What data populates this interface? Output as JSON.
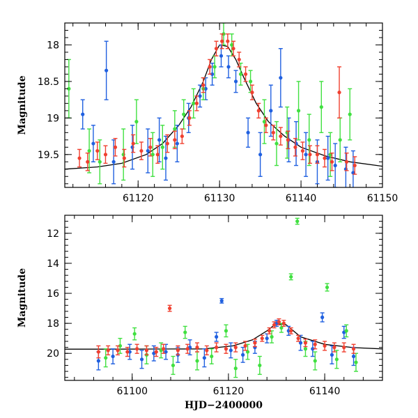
{
  "chart_data": [
    {
      "type": "scatter",
      "xlabel": "",
      "ylabel": "Magnitude",
      "xlim": [
        61111,
        61150
      ],
      "ylim": [
        19.95,
        17.7
      ],
      "y_inverted": true,
      "grid": false,
      "legend": "none",
      "xticks": [
        61120,
        61130,
        61140,
        61150
      ],
      "xtick_labels": [
        "61120",
        "61130",
        "61140",
        "61150"
      ],
      "yticks": [
        18,
        18.5,
        19,
        19.5
      ],
      "ytick_labels": [
        "18",
        "18.5",
        "19",
        "19.5"
      ],
      "colors": {
        "blue": "#2060e0",
        "green": "#40e040",
        "red": "#f04030",
        "model": "#000000"
      },
      "model_curve": {
        "x": [
          61111,
          61115,
          61118,
          61121,
          61123,
          61125,
          61126.5,
          61128,
          61129,
          61130,
          61131,
          61132,
          61133,
          61134.5,
          61136,
          61138,
          61140,
          61143,
          61146,
          61150
        ],
        "y": [
          19.7,
          19.67,
          19.62,
          19.5,
          19.35,
          19.1,
          18.85,
          18.5,
          18.2,
          18.0,
          18.02,
          18.2,
          18.45,
          18.8,
          19.05,
          19.25,
          19.4,
          19.52,
          19.6,
          19.66
        ]
      },
      "series": [
        {
          "color": "blue",
          "x": [
            61113.2,
            61114.5,
            61116.1,
            61117.0,
            61119.3,
            61121.2,
            61122.6,
            61123.4,
            61124.8,
            61126.2,
            61127.6,
            61128.3,
            61129.1,
            61130.2,
            61131.1,
            61132.0,
            61133.5,
            61135.0,
            61136.3,
            61137.5,
            61138.5,
            61139.4,
            61140.6,
            61142.0,
            61143.3,
            61144.2,
            61145.5,
            61146.4
          ],
          "y": [
            18.95,
            19.35,
            18.35,
            19.6,
            19.4,
            19.45,
            19.3,
            19.55,
            19.35,
            19.0,
            18.7,
            18.6,
            18.4,
            18.15,
            18.3,
            18.5,
            19.2,
            19.5,
            18.9,
            18.45,
            19.3,
            19.35,
            19.5,
            19.6,
            19.55,
            19.65,
            19.7,
            19.75
          ],
          "err": [
            0.2,
            0.25,
            0.4,
            0.3,
            0.3,
            0.3,
            0.3,
            0.3,
            0.25,
            0.2,
            0.15,
            0.15,
            0.15,
            0.15,
            0.15,
            0.15,
            0.2,
            0.3,
            0.35,
            0.4,
            0.3,
            0.3,
            0.3,
            0.3,
            0.3,
            0.3,
            0.3,
            0.3
          ]
        },
        {
          "color": "green",
          "x": [
            61111.5,
            61114.0,
            61115.3,
            61118.2,
            61119.8,
            61121.8,
            61123.0,
            61124.5,
            61125.6,
            61126.8,
            61128.0,
            61129.4,
            61130.5,
            61131.5,
            61132.6,
            61133.8,
            61135.5,
            61137.0,
            61138.3,
            61139.7,
            61141.0,
            61142.5,
            61143.6,
            61144.8,
            61146.0
          ],
          "y": [
            18.6,
            19.45,
            19.6,
            19.5,
            19.05,
            19.5,
            19.4,
            19.15,
            18.95,
            18.8,
            18.6,
            18.3,
            17.85,
            18.0,
            18.4,
            18.5,
            19.05,
            19.35,
            19.2,
            18.9,
            19.3,
            18.85,
            19.5,
            19.3,
            18.95
          ],
          "err": [
            0.4,
            0.3,
            0.3,
            0.35,
            0.3,
            0.3,
            0.3,
            0.25,
            0.2,
            0.2,
            0.15,
            0.15,
            0.15,
            0.15,
            0.15,
            0.15,
            0.3,
            0.3,
            0.35,
            0.4,
            0.35,
            0.35,
            0.3,
            0.3,
            0.35
          ]
        },
        {
          "color": "red",
          "x": [
            61112.8,
            61113.8,
            61115.0,
            61116.0,
            61117.2,
            61118.3,
            61119.4,
            61120.4,
            61121.5,
            61122.4,
            61123.6,
            61124.5,
            61125.4,
            61126.3,
            61127.2,
            61128.0,
            61128.8,
            61129.6,
            61130.3,
            61131.0,
            61131.7,
            61132.4,
            61133.2,
            61134.0,
            61134.8,
            61135.7,
            61136.6,
            61137.5,
            61138.4,
            61139.3,
            61140.2,
            61141.1,
            61142.0,
            61142.9,
            61143.8,
            61144.7,
            61145.6,
            61146.6
          ],
          "y": [
            19.55,
            19.6,
            19.45,
            19.5,
            19.4,
            19.55,
            19.35,
            19.45,
            19.4,
            19.5,
            19.35,
            19.3,
            19.25,
            19.0,
            18.8,
            18.55,
            18.3,
            18.05,
            17.95,
            17.95,
            18.05,
            18.2,
            18.4,
            18.65,
            18.9,
            19.1,
            19.2,
            19.25,
            19.3,
            19.4,
            19.45,
            19.5,
            19.5,
            19.55,
            19.6,
            18.65,
            19.6,
            19.65
          ],
          "err": [
            0.12,
            0.12,
            0.12,
            0.12,
            0.12,
            0.12,
            0.12,
            0.12,
            0.12,
            0.12,
            0.12,
            0.12,
            0.1,
            0.1,
            0.1,
            0.1,
            0.1,
            0.1,
            0.1,
            0.1,
            0.1,
            0.1,
            0.1,
            0.1,
            0.1,
            0.1,
            0.1,
            0.12,
            0.12,
            0.12,
            0.12,
            0.12,
            0.12,
            0.12,
            0.12,
            0.35,
            0.12,
            0.12
          ]
        }
      ]
    },
    {
      "type": "scatter",
      "xlabel": "HJD−2400000",
      "ylabel": "Magnitude",
      "xlim": [
        61086,
        61152
      ],
      "ylim": [
        21.8,
        10.8
      ],
      "y_inverted": true,
      "grid": false,
      "legend": "none",
      "xticks": [
        61100,
        61120,
        61140
      ],
      "xtick_labels": [
        "61100",
        "61120",
        "61140"
      ],
      "yticks": [
        12,
        14,
        16,
        18,
        20
      ],
      "ytick_labels": [
        "12",
        "14",
        "16",
        "18",
        "20"
      ],
      "colors": {
        "blue": "#2060e0",
        "green": "#40e040",
        "red": "#f04030",
        "model": "#000000"
      },
      "model_curve": {
        "x": [
          61086,
          61095,
          61105,
          61115,
          61121,
          61125,
          61128,
          61130,
          61132,
          61135,
          61140,
          61146,
          61152
        ],
        "y": [
          19.72,
          19.72,
          19.71,
          19.7,
          19.5,
          19.1,
          18.5,
          18.0,
          18.1,
          18.9,
          19.4,
          19.62,
          19.7
        ]
      },
      "series": [
        {
          "color": "blue",
          "x": [
            61093.0,
            61096.0,
            61099.5,
            61102.0,
            61104.5,
            61107.0,
            61109.5,
            61112.0,
            61115.0,
            61117.5,
            61118.6,
            61120.5,
            61123.0,
            61125.5,
            61128.0,
            61130.0,
            61132.5,
            61135.0,
            61137.5,
            61139.5,
            61141.5,
            61144.0,
            61146.0
          ],
          "y": [
            20.5,
            20.2,
            19.9,
            20.4,
            20.0,
            19.9,
            20.1,
            19.6,
            20.3,
            18.9,
            16.5,
            19.8,
            20.1,
            19.6,
            19.0,
            18.0,
            18.5,
            19.3,
            19.7,
            17.6,
            20.1,
            18.6,
            20.2
          ],
          "err": [
            0.6,
            0.5,
            0.5,
            0.6,
            0.5,
            0.5,
            0.5,
            0.5,
            0.6,
            0.3,
            0.15,
            0.5,
            0.5,
            0.4,
            0.3,
            0.2,
            0.3,
            0.5,
            0.5,
            0.3,
            0.6,
            0.4,
            0.6
          ]
        },
        {
          "color": "green",
          "x": [
            61094.5,
            61097.5,
            61100.5,
            61103.0,
            61106.0,
            61108.5,
            61111.0,
            61113.5,
            61116.5,
            61119.5,
            61121.5,
            61124.0,
            61126.5,
            61129.0,
            61131.0,
            61133.0,
            61134.3,
            61136.0,
            61138.0,
            61140.5,
            61142.5,
            61144.5,
            61146.5
          ],
          "y": [
            20.3,
            19.5,
            18.7,
            20.1,
            19.8,
            20.8,
            18.6,
            20.5,
            20.2,
            18.5,
            21.0,
            19.9,
            20.8,
            18.9,
            18.3,
            14.9,
            11.2,
            19.7,
            20.5,
            15.6,
            20.4,
            18.5,
            20.6
          ],
          "err": [
            0.6,
            0.5,
            0.4,
            0.6,
            0.5,
            0.6,
            0.4,
            0.6,
            0.5,
            0.4,
            0.6,
            0.5,
            0.6,
            0.4,
            0.3,
            0.2,
            0.2,
            0.5,
            0.6,
            0.25,
            0.6,
            0.4,
            0.6
          ]
        },
        {
          "color": "red",
          "x": [
            61093.0,
            61095.0,
            61097.0,
            61099.0,
            61101.0,
            61103.0,
            61105.0,
            61106.5,
            61107.8,
            61109.5,
            61111.5,
            61113.5,
            61115.5,
            61117.5,
            61119.5,
            61121.5,
            61123.5,
            61125.5,
            61127.0,
            61128.5,
            61129.5,
            61130.5,
            61131.5,
            61133.0,
            61134.5,
            61136.0,
            61138.0,
            61140.0,
            61142.0,
            61144.0,
            61146.0
          ],
          "y": [
            19.9,
            19.8,
            19.8,
            19.9,
            19.7,
            19.8,
            19.9,
            19.7,
            17.0,
            19.8,
            19.7,
            19.6,
            19.8,
            19.6,
            19.7,
            19.6,
            19.5,
            19.3,
            19.0,
            18.5,
            18.1,
            17.9,
            18.0,
            18.5,
            19.0,
            19.3,
            19.4,
            19.5,
            19.6,
            19.6,
            19.7
          ],
          "err": [
            0.4,
            0.3,
            0.3,
            0.3,
            0.3,
            0.3,
            0.3,
            0.3,
            0.2,
            0.3,
            0.3,
            0.3,
            0.3,
            0.3,
            0.3,
            0.3,
            0.3,
            0.25,
            0.2,
            0.2,
            0.2,
            0.2,
            0.2,
            0.2,
            0.2,
            0.25,
            0.3,
            0.3,
            0.3,
            0.3,
            0.3
          ]
        }
      ]
    }
  ]
}
